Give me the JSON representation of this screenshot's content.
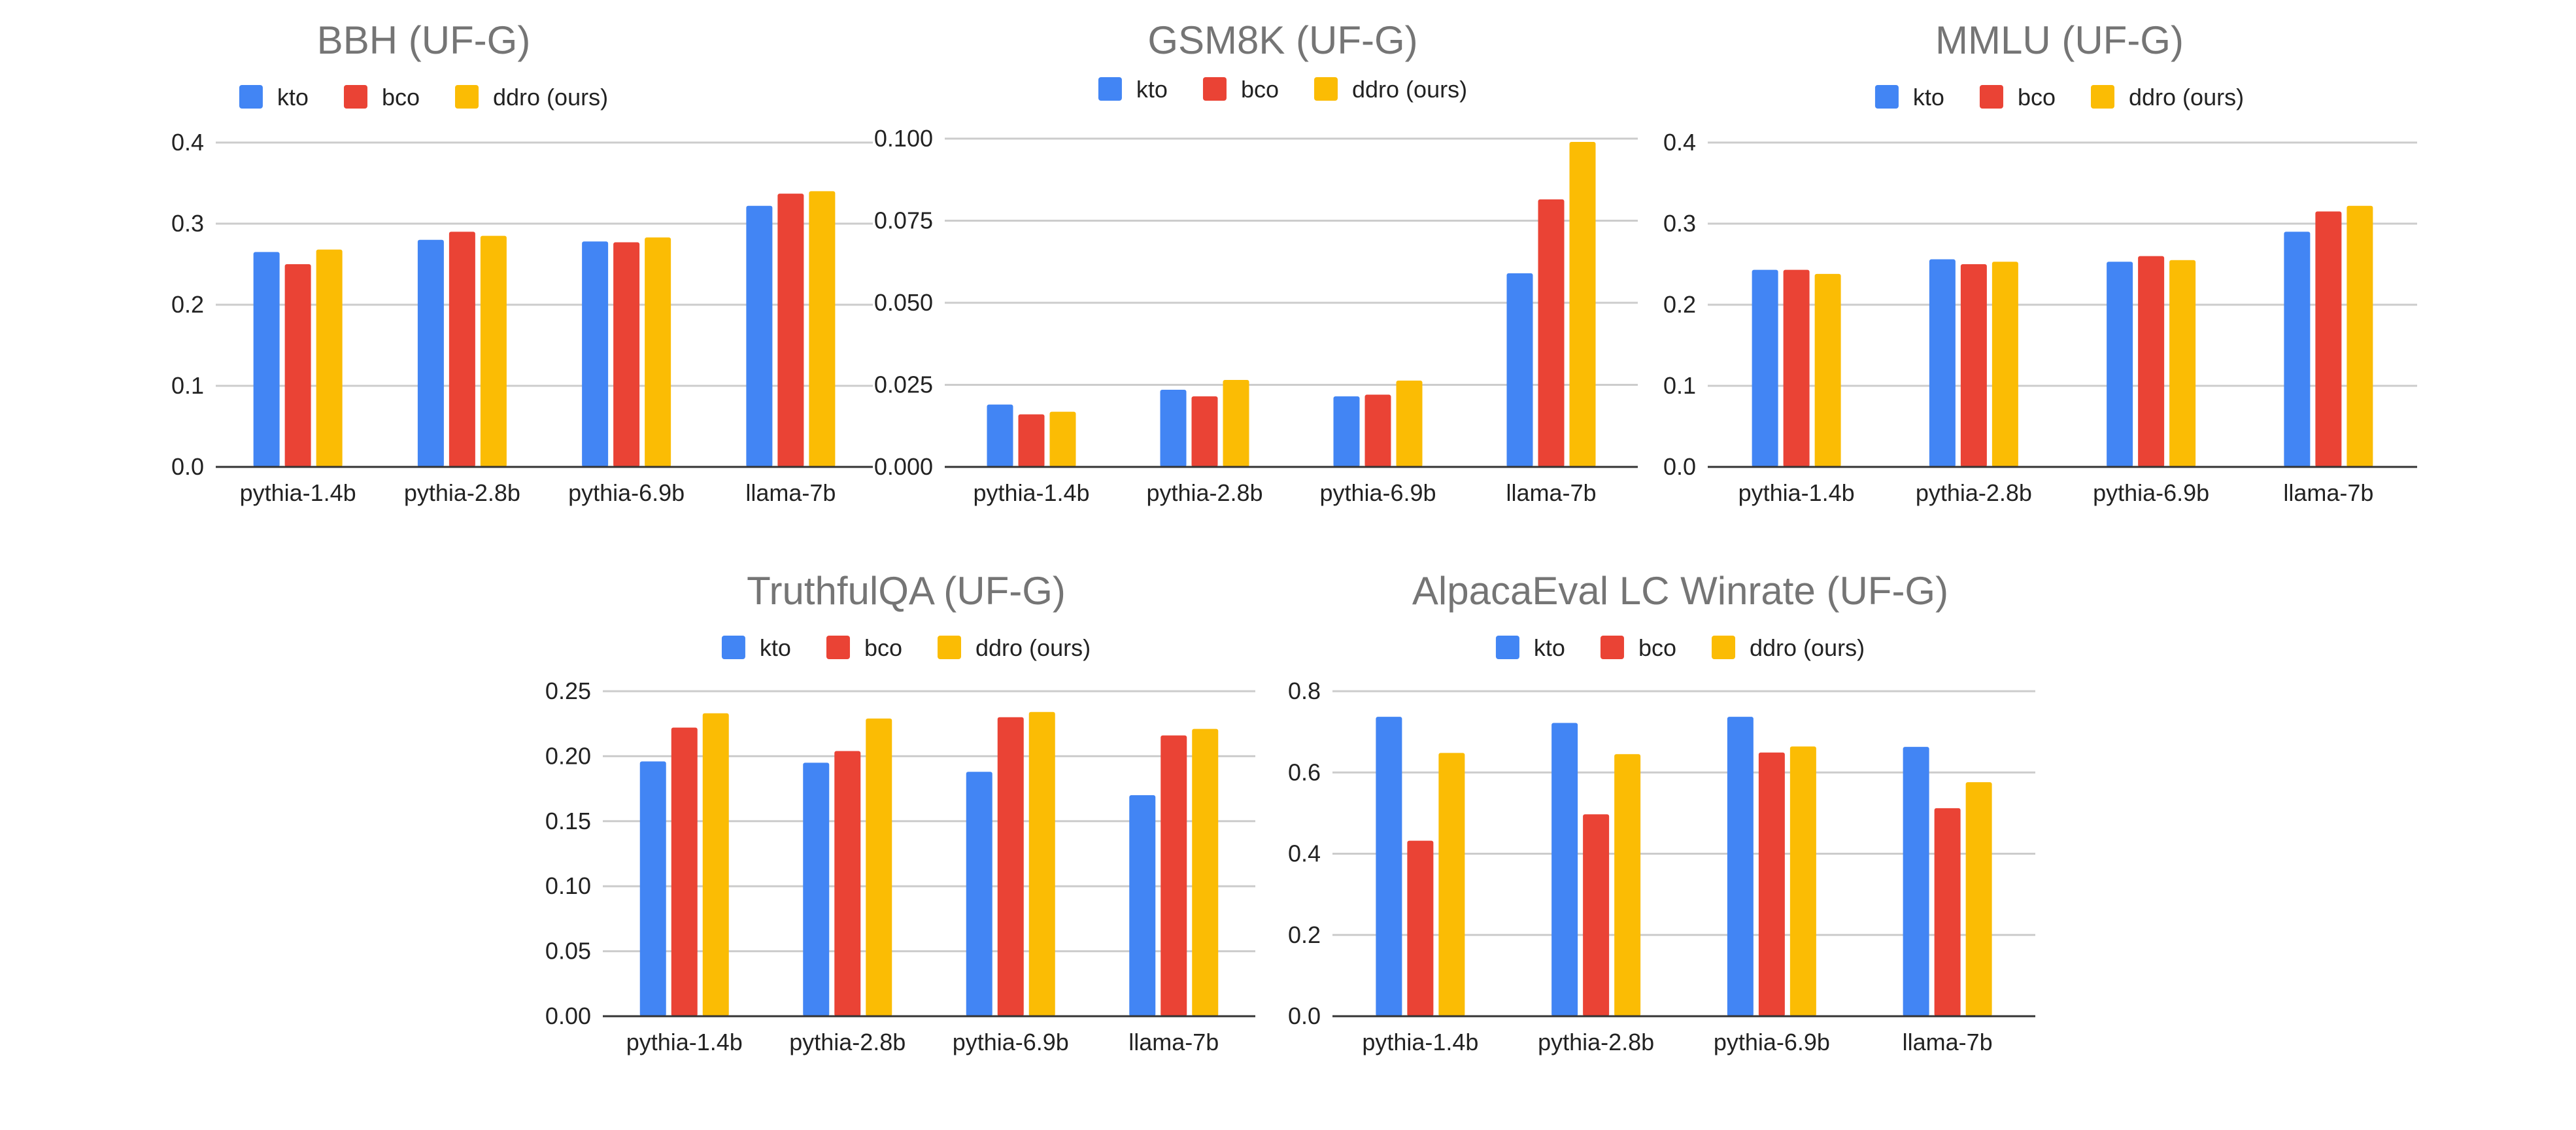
{
  "colors": {
    "kto": "#4285f4",
    "bco": "#ea4335",
    "ddro": "#fbbc04"
  },
  "chart_data": [
    {
      "type": "bar",
      "title": "BBH (UF-G)",
      "categories": [
        "pythia-1.4b",
        "pythia-2.8b",
        "pythia-6.9b",
        "llama-7b"
      ],
      "series": [
        {
          "name": "kto",
          "values": [
            0.265,
            0.28,
            0.278,
            0.322
          ]
        },
        {
          "name": "bco",
          "values": [
            0.25,
            0.29,
            0.277,
            0.337
          ]
        },
        {
          "name": "ddro (ours)",
          "values": [
            0.268,
            0.285,
            0.283,
            0.34
          ]
        }
      ],
      "yticks": [
        "0.0",
        "0.1",
        "0.2",
        "0.3",
        "0.4"
      ],
      "ylim": [
        0,
        0.4
      ],
      "grid": true,
      "legend": "top"
    },
    {
      "type": "bar",
      "title": "GSM8K (UF-G)",
      "categories": [
        "pythia-1.4b",
        "pythia-2.8b",
        "pythia-6.9b",
        "llama-7b"
      ],
      "series": [
        {
          "name": "kto",
          "values": [
            0.019,
            0.0235,
            0.0215,
            0.059
          ]
        },
        {
          "name": "bco",
          "values": [
            0.016,
            0.0215,
            0.022,
            0.0815
          ]
        },
        {
          "name": "ddro (ours)",
          "values": [
            0.0168,
            0.0265,
            0.0263,
            0.099
          ]
        }
      ],
      "yticks": [
        "0.000",
        "0.025",
        "0.050",
        "0.075",
        "0.100"
      ],
      "ylim": [
        0,
        0.1
      ],
      "grid": true,
      "legend": "top"
    },
    {
      "type": "bar",
      "title": "MMLU (UF-G)",
      "categories": [
        "pythia-1.4b",
        "pythia-2.8b",
        "pythia-6.9b",
        "llama-7b"
      ],
      "series": [
        {
          "name": "kto",
          "values": [
            0.243,
            0.256,
            0.253,
            0.29
          ]
        },
        {
          "name": "bco",
          "values": [
            0.243,
            0.25,
            0.26,
            0.315
          ]
        },
        {
          "name": "ddro (ours)",
          "values": [
            0.238,
            0.253,
            0.255,
            0.322
          ]
        }
      ],
      "yticks": [
        "0.0",
        "0.1",
        "0.2",
        "0.3",
        "0.4"
      ],
      "ylim": [
        0,
        0.4
      ],
      "grid": true,
      "legend": "top"
    },
    {
      "type": "bar",
      "title": "TruthfulQA (UF-G)",
      "categories": [
        "pythia-1.4b",
        "pythia-2.8b",
        "pythia-6.9b",
        "llama-7b"
      ],
      "series": [
        {
          "name": "kto",
          "values": [
            0.196,
            0.195,
            0.188,
            0.17
          ]
        },
        {
          "name": "bco",
          "values": [
            0.222,
            0.204,
            0.23,
            0.216
          ]
        },
        {
          "name": "ddro (ours)",
          "values": [
            0.233,
            0.229,
            0.234,
            0.221
          ]
        }
      ],
      "yticks": [
        "0.00",
        "0.05",
        "0.10",
        "0.15",
        "0.20",
        "0.25"
      ],
      "ylim": [
        0,
        0.25
      ],
      "grid": true,
      "legend": "top"
    },
    {
      "type": "bar",
      "title": "AlpacaEval LC Winrate (UF-G)",
      "categories": [
        "pythia-1.4b",
        "pythia-2.8b",
        "pythia-6.9b",
        "llama-7b"
      ],
      "series": [
        {
          "name": "kto",
          "values": [
            0.737,
            0.722,
            0.737,
            0.663
          ]
        },
        {
          "name": "bco",
          "values": [
            0.432,
            0.497,
            0.649,
            0.512
          ]
        },
        {
          "name": "ddro (ours)",
          "values": [
            0.648,
            0.645,
            0.664,
            0.576
          ]
        }
      ],
      "yticks": [
        "0.0",
        "0.2",
        "0.4",
        "0.6",
        "0.8"
      ],
      "ylim": [
        0,
        0.8
      ],
      "grid": true,
      "legend": "top"
    }
  ]
}
